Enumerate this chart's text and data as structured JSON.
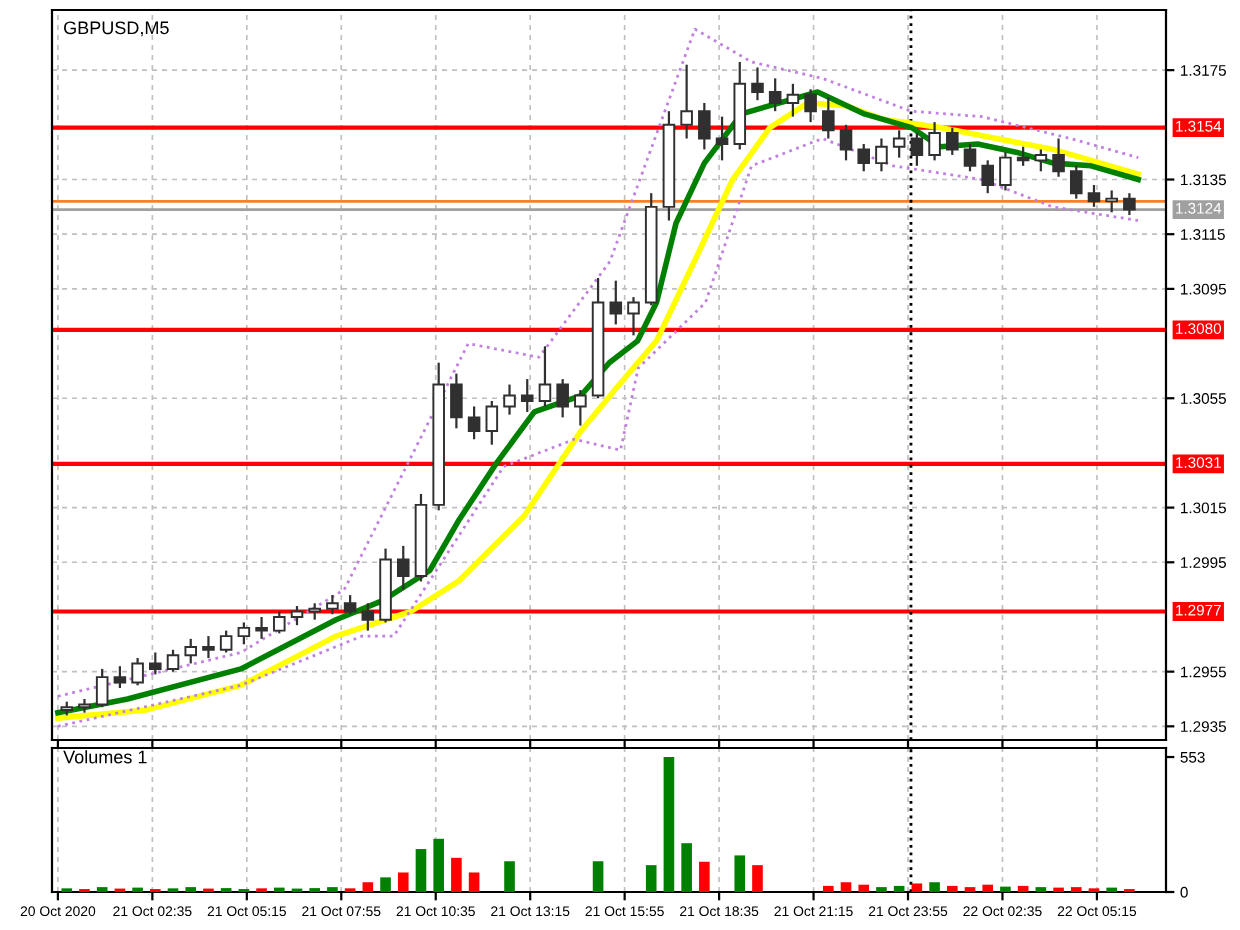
{
  "chart_data": [
    {
      "type": "candlestick",
      "title": "GBPUSD,M5",
      "color": "#303030",
      "x": [
        "2020-10-21T00:10",
        "2020-10-21T00:40",
        "2020-10-21T01:10",
        "2020-10-21T01:40",
        "2020-10-21T02:10",
        "2020-10-21T02:40",
        "2020-10-21T03:10",
        "2020-10-21T03:40",
        "2020-10-21T04:10",
        "2020-10-21T04:40",
        "2020-10-21T05:10",
        "2020-10-21T05:40",
        "2020-10-21T06:10",
        "2020-10-21T06:40",
        "2020-10-21T07:10",
        "2020-10-21T07:40",
        "2020-10-21T08:10",
        "2020-10-21T08:40",
        "2020-10-21T09:10",
        "2020-10-21T09:40",
        "2020-10-21T10:10",
        "2020-10-21T10:40",
        "2020-10-21T11:10",
        "2020-10-21T11:40",
        "2020-10-21T12:10",
        "2020-10-21T12:40",
        "2020-10-21T13:10",
        "2020-10-21T13:40",
        "2020-10-21T14:10",
        "2020-10-21T14:40",
        "2020-10-21T15:10",
        "2020-10-21T15:40",
        "2020-10-21T16:10",
        "2020-10-21T16:40",
        "2020-10-21T17:10",
        "2020-10-21T17:40",
        "2020-10-21T18:10",
        "2020-10-21T18:40",
        "2020-10-21T19:10",
        "2020-10-21T19:40",
        "2020-10-21T20:10",
        "2020-10-21T20:40",
        "2020-10-21T21:10",
        "2020-10-21T21:40",
        "2020-10-21T22:10",
        "2020-10-21T22:40",
        "2020-10-21T23:10",
        "2020-10-21T23:40",
        "2020-10-22T00:10",
        "2020-10-22T00:40",
        "2020-10-22T01:10",
        "2020-10-22T01:40",
        "2020-10-22T02:10",
        "2020-10-22T02:40",
        "2020-10-22T03:10",
        "2020-10-22T03:40",
        "2020-10-22T04:10",
        "2020-10-22T04:40",
        "2020-10-22T05:10",
        "2020-10-22T05:40",
        "2020-10-22T06:10"
      ],
      "ohlc": [
        [
          1.2941,
          1.2944,
          1.2939,
          1.2942
        ],
        [
          1.2942,
          1.2945,
          1.294,
          1.2943
        ],
        [
          1.2943,
          1.2956,
          1.2942,
          1.2953
        ],
        [
          1.2953,
          1.2957,
          1.2949,
          1.2951
        ],
        [
          1.2951,
          1.296,
          1.295,
          1.2958
        ],
        [
          1.2958,
          1.2962,
          1.2954,
          1.2956
        ],
        [
          1.2956,
          1.2963,
          1.2955,
          1.2961
        ],
        [
          1.2961,
          1.2967,
          1.2958,
          1.2964
        ],
        [
          1.2964,
          1.2968,
          1.296,
          1.2963
        ],
        [
          1.2963,
          1.297,
          1.2962,
          1.2968
        ],
        [
          1.2968,
          1.2973,
          1.2965,
          1.2971
        ],
        [
          1.2971,
          1.2975,
          1.2967,
          1.297
        ],
        [
          1.297,
          1.2977,
          1.2969,
          1.2975
        ],
        [
          1.2975,
          1.2979,
          1.2972,
          1.2977
        ],
        [
          1.2977,
          1.298,
          1.2974,
          1.2978
        ],
        [
          1.2978,
          1.2983,
          1.2976,
          1.298
        ],
        [
          1.298,
          1.2983,
          1.2976,
          1.2977
        ],
        [
          1.2977,
          1.298,
          1.297,
          1.2974
        ],
        [
          1.2974,
          1.3,
          1.2973,
          1.2996
        ],
        [
          1.2996,
          1.3001,
          1.2985,
          1.299
        ],
        [
          1.299,
          1.302,
          1.2988,
          1.3016
        ],
        [
          1.3016,
          1.3068,
          1.3014,
          1.306
        ],
        [
          1.306,
          1.3064,
          1.3044,
          1.3048
        ],
        [
          1.3048,
          1.3052,
          1.304,
          1.3043
        ],
        [
          1.3043,
          1.3054,
          1.3038,
          1.3052
        ],
        [
          1.3052,
          1.306,
          1.3049,
          1.3056
        ],
        [
          1.3056,
          1.3062,
          1.305,
          1.3054
        ],
        [
          1.3054,
          1.3074,
          1.3052,
          1.306
        ],
        [
          1.306,
          1.3062,
          1.3048,
          1.3052
        ],
        [
          1.3052,
          1.3058,
          1.3045,
          1.3056
        ],
        [
          1.3056,
          1.3099,
          1.3055,
          1.309
        ],
        [
          1.309,
          1.3098,
          1.3082,
          1.3086
        ],
        [
          1.3086,
          1.3092,
          1.3078,
          1.309
        ],
        [
          1.309,
          1.313,
          1.3089,
          1.3125
        ],
        [
          1.3125,
          1.316,
          1.312,
          1.3155
        ],
        [
          1.3155,
          1.3177,
          1.315,
          1.316
        ],
        [
          1.316,
          1.3163,
          1.3146,
          1.315
        ],
        [
          1.315,
          1.3158,
          1.3142,
          1.3148
        ],
        [
          1.3148,
          1.3178,
          1.3146,
          1.317
        ],
        [
          1.317,
          1.3176,
          1.3164,
          1.3167
        ],
        [
          1.3167,
          1.3172,
          1.316,
          1.3163
        ],
        [
          1.3163,
          1.317,
          1.3158,
          1.3166
        ],
        [
          1.3166,
          1.3168,
          1.3156,
          1.316
        ],
        [
          1.316,
          1.3165,
          1.315,
          1.3153
        ],
        [
          1.3153,
          1.3155,
          1.3142,
          1.3146
        ],
        [
          1.3146,
          1.3148,
          1.3138,
          1.3141
        ],
        [
          1.3141,
          1.315,
          1.3138,
          1.3147
        ],
        [
          1.3147,
          1.3153,
          1.3143,
          1.315
        ],
        [
          1.315,
          1.3152,
          1.314,
          1.3144
        ],
        [
          1.3144,
          1.3156,
          1.3142,
          1.3152
        ],
        [
          1.3152,
          1.3154,
          1.3144,
          1.3146
        ],
        [
          1.3146,
          1.3148,
          1.3138,
          1.314
        ],
        [
          1.314,
          1.3142,
          1.313,
          1.3133
        ],
        [
          1.3133,
          1.3145,
          1.3131,
          1.3143
        ],
        [
          1.3143,
          1.3147,
          1.314,
          1.3142
        ],
        [
          1.3142,
          1.3146,
          1.3138,
          1.3144
        ],
        [
          1.3144,
          1.315,
          1.3136,
          1.3138
        ],
        [
          1.3138,
          1.314,
          1.3128,
          1.313
        ],
        [
          1.313,
          1.3133,
          1.3125,
          1.3127
        ],
        [
          1.3127,
          1.3131,
          1.3123,
          1.3128
        ],
        [
          1.3128,
          1.313,
          1.3122,
          1.3124
        ]
      ],
      "series": [
        {
          "type": "line",
          "color": "#ffff00",
          "line_style": "solid",
          "x": [
            "2020-10-20T23:55",
            "2020-10-21T02:25",
            "2020-10-21T05:05",
            "2020-10-21T07:46",
            "2020-10-21T09:53",
            "2020-10-21T11:13",
            "2020-10-21T13:05",
            "2020-10-21T14:41",
            "2020-10-21T15:46",
            "2020-10-21T16:49",
            "2020-10-21T17:53",
            "2020-10-21T18:58",
            "2020-10-21T20:01",
            "2020-10-21T21:05",
            "2020-10-21T22:10",
            "2020-10-21T23:13",
            "2020-10-22T00:49",
            "2020-10-22T02:25",
            "2020-10-22T04:01",
            "2020-10-22T06:25"
          ],
          "values": [
            1.2938,
            1.2941,
            1.295,
            1.2968,
            1.2977,
            1.2988,
            1.3012,
            1.3043,
            1.306,
            1.3076,
            1.3105,
            1.3135,
            1.3154,
            1.3163,
            1.3162,
            1.3157,
            1.3154,
            1.315,
            1.3146,
            1.3137
          ]
        },
        {
          "type": "line",
          "color": "#008000",
          "line_style": "solid",
          "x": [
            "2020-10-20T23:55",
            "2020-10-21T01:53",
            "2020-10-21T05:05",
            "2020-10-21T07:46",
            "2020-10-21T09:05",
            "2020-10-21T10:25",
            "2020-10-21T11:13",
            "2020-10-21T12:17",
            "2020-10-21T13:22",
            "2020-10-21T14:41",
            "2020-10-21T15:29",
            "2020-10-21T16:17",
            "2020-10-21T16:49",
            "2020-10-21T17:22",
            "2020-10-21T18:10",
            "2020-10-21T19:13",
            "2020-10-21T20:01",
            "2020-10-21T21:22",
            "2020-10-21T22:41",
            "2020-10-22T00:01",
            "2020-10-22T00:49",
            "2020-10-22T01:53",
            "2020-10-22T02:58",
            "2020-10-22T04:01",
            "2020-10-22T05:05",
            "2020-10-22T06:25"
          ],
          "values": [
            1.294,
            1.2945,
            1.2956,
            1.2974,
            1.2981,
            1.2992,
            1.301,
            1.3031,
            1.305,
            1.3056,
            1.3068,
            1.3076,
            1.309,
            1.3119,
            1.3141,
            1.3159,
            1.3162,
            1.3167,
            1.3159,
            1.3154,
            1.3147,
            1.3148,
            1.3145,
            1.3141,
            1.314,
            1.3135
          ]
        },
        {
          "type": "line",
          "color": "#c080e0",
          "line_style": "dotted",
          "x": [
            "2020-10-20T23:55",
            "2020-10-21T05:05",
            "2020-10-21T08:00",
            "2020-10-21T11:30",
            "2020-10-21T13:30",
            "2020-10-21T15:30",
            "2020-10-21T17:54",
            "2020-10-21T19:30",
            "2020-10-21T21:30",
            "2020-10-22T00:00",
            "2020-10-22T02:00",
            "2020-10-22T04:30",
            "2020-10-22T06:25"
          ],
          "values": [
            1.2946,
            1.2962,
            1.2985,
            1.3075,
            1.307,
            1.3105,
            1.319,
            1.3178,
            1.3172,
            1.316,
            1.3158,
            1.315,
            1.3143
          ]
        },
        {
          "type": "line",
          "color": "#c080e0",
          "line_style": "dotted",
          "x": [
            "2020-10-20T23:55",
            "2020-10-21T05:05",
            "2020-10-21T08:30",
            "2020-10-21T09:24",
            "2020-10-21T12:30",
            "2020-10-21T14:30",
            "2020-10-21T15:48",
            "2020-10-21T16:18",
            "2020-10-21T18:12",
            "2020-10-21T19:30",
            "2020-10-21T21:30",
            "2020-10-21T23:30",
            "2020-10-22T02:00",
            "2020-10-22T04:00",
            "2020-10-22T06:25"
          ],
          "values": [
            1.2935,
            1.295,
            1.2968,
            1.2968,
            1.303,
            1.304,
            1.3036,
            1.3066,
            1.309,
            1.314,
            1.315,
            1.314,
            1.3135,
            1.3125,
            1.312
          ]
        }
      ],
      "ref_lines": [
        {
          "axis": "y",
          "value": 1.3154,
          "label": "1.3154",
          "color": "#ff0000",
          "line_style": "solid"
        },
        {
          "axis": "y",
          "value": 1.308,
          "label": "1.3080",
          "color": "#ff0000",
          "line_style": "solid"
        },
        {
          "axis": "y",
          "value": 1.3031,
          "label": "1.3031",
          "color": "#ff0000",
          "line_style": "solid"
        },
        {
          "axis": "y",
          "value": 1.2977,
          "label": "1.2977",
          "color": "#ff0000",
          "line_style": "solid"
        },
        {
          "axis": "y",
          "value": 1.3127,
          "label": null,
          "color": "#ff7f27",
          "line_style": "solid"
        },
        {
          "axis": "y",
          "value": 1.3124,
          "label": "1.3124",
          "color": "#a0a0a0",
          "line_style": "solid"
        },
        {
          "axis": "x",
          "value": "2020-10-22T00:00",
          "label": null,
          "color": "#000000",
          "line_style": "dotted"
        }
      ],
      "xlim": [
        "2020-10-20T23:45",
        "2020-10-22T07:12"
      ],
      "ylim": [
        1.293,
        1.3197
      ],
      "xticks": [
        "2020-10-20T23:55",
        "2020-10-21T02:35",
        "2020-10-21T05:15",
        "2020-10-21T07:55",
        "2020-10-21T10:35",
        "2020-10-21T13:15",
        "2020-10-21T15:55",
        "2020-10-21T18:35",
        "2020-10-21T21:15",
        "2020-10-21T23:55",
        "2020-10-22T02:35",
        "2020-10-22T05:15"
      ],
      "yticks": [
        1.2935,
        1.2955,
        1.2995,
        1.3015,
        1.3055,
        1.3095,
        1.3115,
        1.3135,
        1.3175
      ],
      "tick_labels": "y",
      "grid": true
    },
    {
      "type": "bar",
      "title": "Volumes 1",
      "x": [
        "2020-10-21T00:10",
        "2020-10-21T00:40",
        "2020-10-21T01:10",
        "2020-10-21T01:40",
        "2020-10-21T02:10",
        "2020-10-21T02:40",
        "2020-10-21T03:10",
        "2020-10-21T03:40",
        "2020-10-21T04:10",
        "2020-10-21T04:40",
        "2020-10-21T05:10",
        "2020-10-21T05:40",
        "2020-10-21T06:10",
        "2020-10-21T06:40",
        "2020-10-21T07:10",
        "2020-10-21T07:40",
        "2020-10-21T08:10",
        "2020-10-21T08:40",
        "2020-10-21T09:10",
        "2020-10-21T09:40",
        "2020-10-21T10:10",
        "2020-10-21T10:40",
        "2020-10-21T11:10",
        "2020-10-21T11:40",
        "2020-10-21T12:10",
        "2020-10-21T12:40",
        "2020-10-21T13:10",
        "2020-10-21T13:40",
        "2020-10-21T14:10",
        "2020-10-21T14:40",
        "2020-10-21T15:10",
        "2020-10-21T15:40",
        "2020-10-21T16:10",
        "2020-10-21T16:40",
        "2020-10-21T17:10",
        "2020-10-21T17:40",
        "2020-10-21T18:10",
        "2020-10-21T18:40",
        "2020-10-21T19:10",
        "2020-10-21T19:40",
        "2020-10-21T20:10",
        "2020-10-21T20:40",
        "2020-10-21T21:10",
        "2020-10-21T21:40",
        "2020-10-21T22:10",
        "2020-10-21T22:40",
        "2020-10-21T23:10",
        "2020-10-21T23:40",
        "2020-10-22T00:10",
        "2020-10-22T00:40",
        "2020-10-22T01:10",
        "2020-10-22T01:40",
        "2020-10-22T02:10",
        "2020-10-22T02:40",
        "2020-10-22T03:10",
        "2020-10-22T03:40",
        "2020-10-22T04:10",
        "2020-10-22T04:40",
        "2020-10-22T05:10",
        "2020-10-22T05:40",
        "2020-10-22T06:10"
      ],
      "values": [
        15,
        12,
        20,
        14,
        18,
        12,
        15,
        20,
        14,
        16,
        12,
        15,
        18,
        14,
        16,
        20,
        15,
        40,
        60,
        80,
        176,
        218,
        140,
        80,
        null,
        126,
        null,
        null,
        null,
        null,
        126,
        null,
        null,
        110,
        553,
        200,
        124,
        null,
        150,
        110,
        null,
        null,
        null,
        25,
        40,
        30,
        20,
        25,
        35,
        40,
        25,
        20,
        30,
        22,
        25,
        20,
        18,
        20,
        15,
        18,
        12
      ],
      "colors": [
        "#008000",
        "#ff0000",
        "#008000",
        "#ff0000",
        "#008000",
        "#ff0000",
        "#008000",
        "#008000",
        "#ff0000",
        "#008000",
        "#008000",
        "#ff0000",
        "#008000",
        "#008000",
        "#008000",
        "#008000",
        "#ff0000",
        "#ff0000",
        "#008000",
        "#ff0000",
        "#008000",
        "#008000",
        "#ff0000",
        "#ff0000",
        "#008000",
        "#008000",
        "#ff0000",
        "#008000",
        "#ff0000",
        "#008000",
        "#008000",
        "#ff0000",
        "#008000",
        "#008000",
        "#008000",
        "#008000",
        "#ff0000",
        "#ff0000",
        "#008000",
        "#ff0000",
        "#ff0000",
        "#008000",
        "#ff0000",
        "#ff0000",
        "#ff0000",
        "#ff0000",
        "#008000",
        "#008000",
        "#ff0000",
        "#008000",
        "#ff0000",
        "#ff0000",
        "#ff0000",
        "#008000",
        "#ff0000",
        "#008000",
        "#ff0000",
        "#ff0000",
        "#ff0000",
        "#008000",
        "#ff0000"
      ],
      "xlim": [
        "2020-10-20T23:45",
        "2020-10-22T07:12"
      ],
      "ylim": [
        0,
        590
      ],
      "xticks": [
        {
          "value": "2020-10-20T23:55",
          "label": "20 Oct 2020"
        },
        {
          "value": "2020-10-21T02:35",
          "label": "21 Oct 02:35"
        },
        {
          "value": "2020-10-21T05:15",
          "label": "21 Oct 05:15"
        },
        {
          "value": "2020-10-21T07:55",
          "label": "21 Oct 07:55"
        },
        {
          "value": "2020-10-21T10:35",
          "label": "21 Oct 10:35"
        },
        {
          "value": "2020-10-21T13:15",
          "label": "21 Oct 13:15"
        },
        {
          "value": "2020-10-21T15:55",
          "label": "21 Oct 15:55"
        },
        {
          "value": "2020-10-21T18:35",
          "label": "21 Oct 18:35"
        },
        {
          "value": "2020-10-21T21:15",
          "label": "21 Oct 21:15"
        },
        {
          "value": "2020-10-21T23:55",
          "label": "21 Oct 23:55"
        },
        {
          "value": "2020-10-22T02:35",
          "label": "22 Oct 02:35"
        },
        {
          "value": "2020-10-22T05:15",
          "label": "22 Oct 05:15"
        }
      ],
      "yticks": [
        0,
        553
      ],
      "ref_lines": [
        {
          "axis": "x",
          "value": "2020-10-22T00:00",
          "label": null,
          "color": "#000000",
          "line_style": "dotted"
        }
      ],
      "grid": "x"
    }
  ]
}
